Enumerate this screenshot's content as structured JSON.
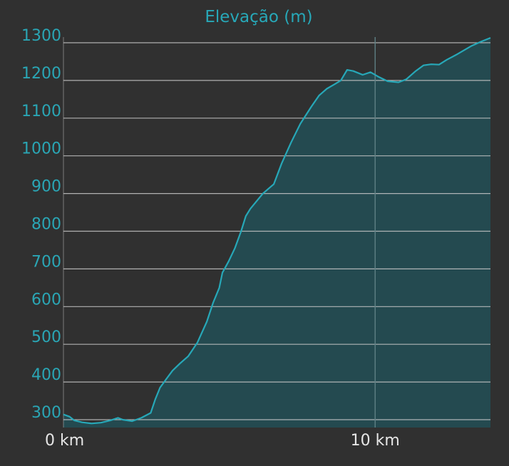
{
  "chart_data": {
    "type": "area",
    "title": "Elevação (m)",
    "xlabel": "",
    "ylabel": "",
    "xlim": [
      0,
      13.7
    ],
    "ylim": [
      290,
      1300
    ],
    "y_ticks": [
      300,
      400,
      500,
      600,
      700,
      800,
      900,
      1000,
      1100,
      1200,
      1300
    ],
    "y_tick_labels": [
      "300",
      "400",
      "500",
      "600",
      "700",
      "800",
      "900",
      "1000",
      "1100",
      "1200",
      "1300"
    ],
    "x_ticks": [
      0,
      10
    ],
    "x_tick_labels": [
      "0 km",
      "10 km"
    ],
    "grid": "horizontal",
    "series": [
      {
        "name": "",
        "x": [
          0,
          0.2,
          0.35,
          0.6,
          0.9,
          1.2,
          1.5,
          1.75,
          1.9,
          2.2,
          2.5,
          2.8,
          2.95,
          3.1,
          3.3,
          3.5,
          3.75,
          4.0,
          4.3,
          4.6,
          4.8,
          5.0,
          5.1,
          5.3,
          5.5,
          5.7,
          5.85,
          6.0,
          6.15,
          6.4,
          6.75,
          7.0,
          7.3,
          7.6,
          7.95,
          8.2,
          8.45,
          8.7,
          8.9,
          9.1,
          9.3,
          9.6,
          9.85,
          10.1,
          10.4,
          10.75,
          11.0,
          11.3,
          11.55,
          11.8,
          12.05,
          12.3,
          12.6,
          12.85,
          13.1,
          13.4,
          13.7
        ],
        "y": [
          314,
          308,
          298,
          293,
          290,
          292,
          298,
          305,
          300,
          296,
          305,
          318,
          355,
          385,
          408,
          430,
          450,
          468,
          505,
          560,
          610,
          650,
          690,
          720,
          755,
          800,
          840,
          860,
          875,
          900,
          925,
          980,
          1035,
          1085,
          1130,
          1160,
          1178,
          1190,
          1200,
          1228,
          1225,
          1215,
          1222,
          1210,
          1198,
          1195,
          1203,
          1225,
          1240,
          1243,
          1242,
          1255,
          1268,
          1280,
          1292,
          1303,
          1313
        ]
      }
    ]
  },
  "colors": {
    "background": "#303030",
    "line": "#27a8b8",
    "fill": "#244a50",
    "grid": "#c8c8c8",
    "vgrid": "#5f8085",
    "ytick": "#2aa6b5",
    "xtick": "#e6e6e6",
    "title": "#27a8b8"
  }
}
